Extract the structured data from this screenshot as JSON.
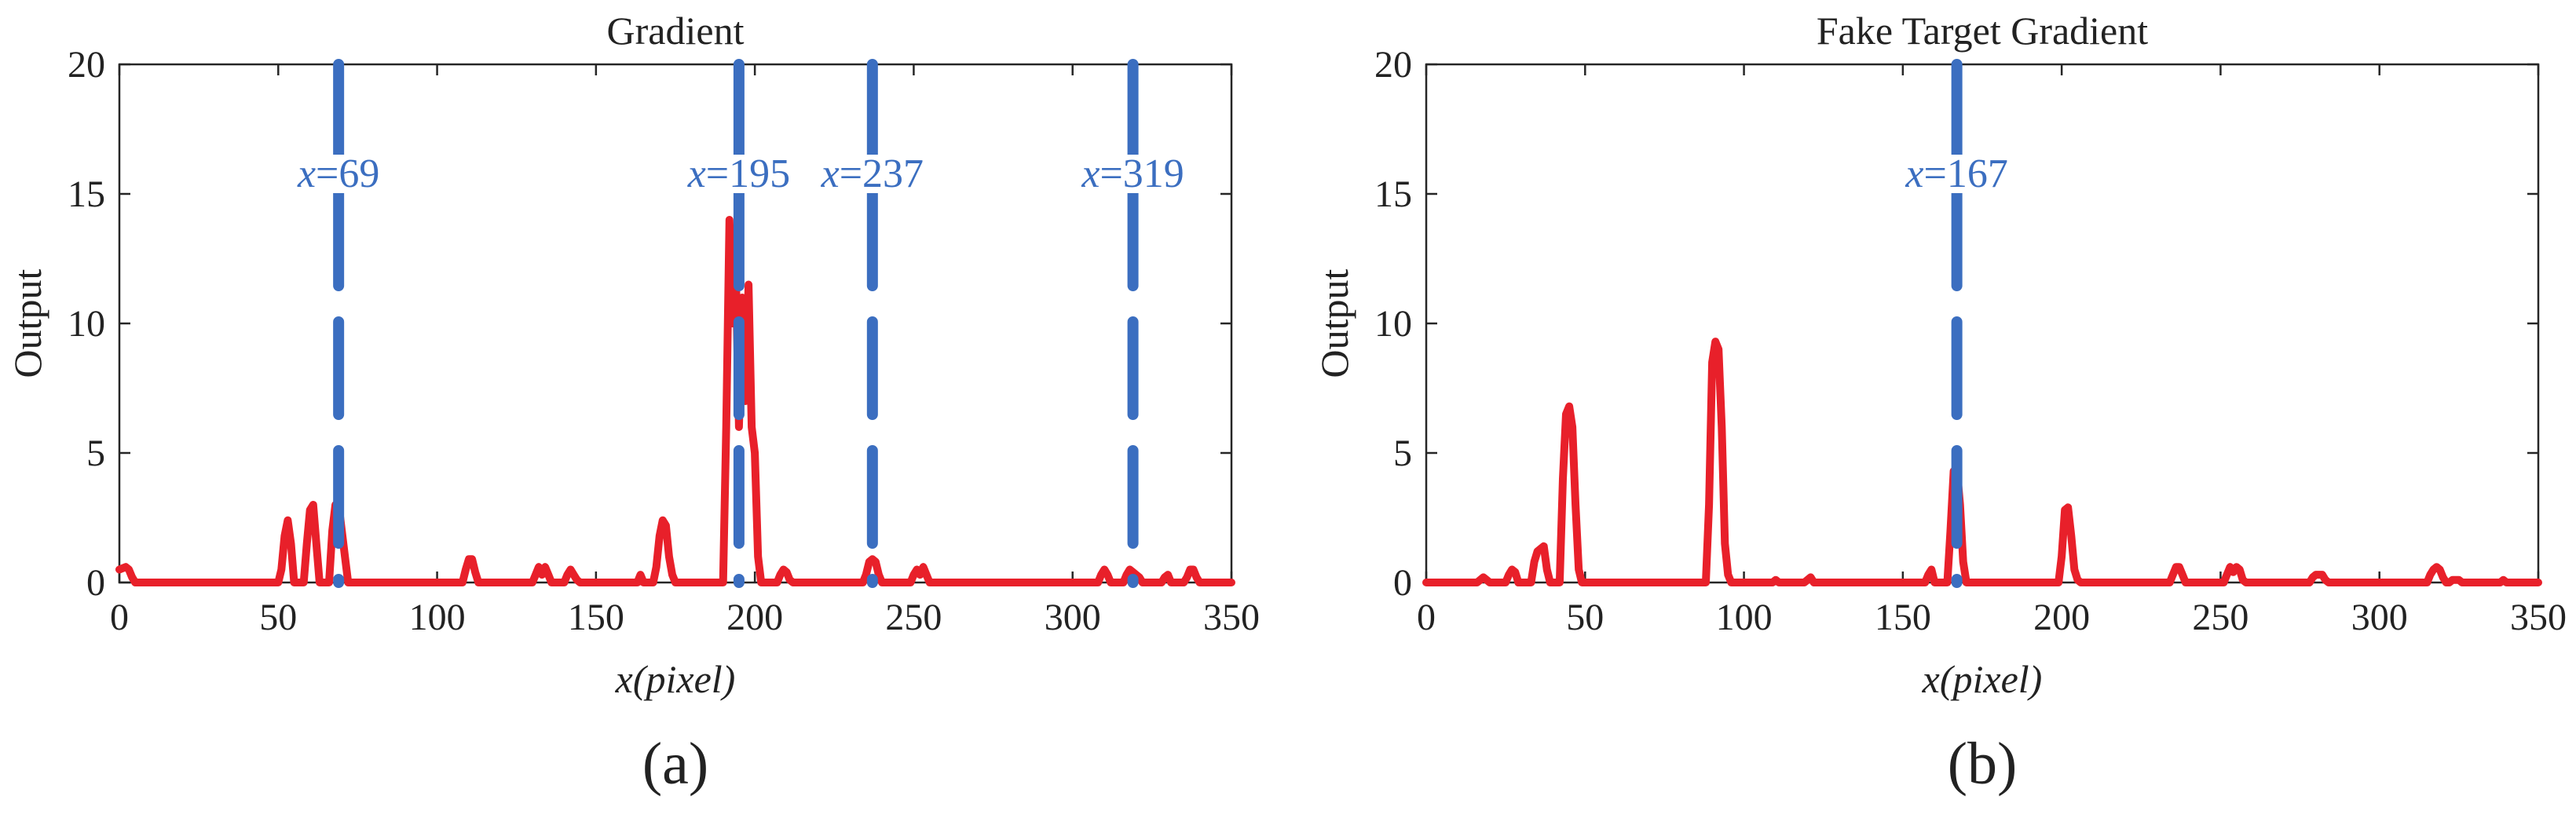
{
  "chart_data": [
    {
      "type": "line",
      "title": "Gradient",
      "panel_label": "(a)",
      "xlabel": "x(pixel)",
      "ylabel": "Output",
      "xlim": [
        0,
        350
      ],
      "ylim": [
        0,
        20
      ],
      "xticks": [
        "0",
        "50",
        "100",
        "150",
        "200",
        "250",
        "300",
        "350"
      ],
      "yticks": [
        "0",
        "5",
        "10",
        "15",
        "20"
      ],
      "grid": false,
      "series": [
        {
          "color": "#E8202A",
          "style": "solid",
          "x": [
            0,
            2,
            3,
            4,
            5,
            50,
            51,
            52,
            53,
            54,
            55,
            58,
            59,
            60,
            61,
            62,
            63,
            66,
            67,
            68,
            69,
            70,
            71,
            72,
            108,
            109,
            110,
            111,
            112,
            113,
            130,
            131,
            132,
            133,
            134,
            135,
            136,
            137,
            140,
            141,
            142,
            143,
            144,
            145,
            163,
            164,
            165,
            168,
            169,
            170,
            171,
            172,
            173,
            174,
            175,
            190,
            191,
            192,
            193,
            194,
            195,
            196,
            197,
            198,
            199,
            200,
            201,
            202,
            207,
            208,
            209,
            210,
            211,
            212,
            234,
            235,
            236,
            237,
            238,
            239,
            240,
            249,
            250,
            251,
            252,
            253,
            254,
            255,
            308,
            309,
            310,
            311,
            312,
            316,
            317,
            318,
            319,
            320,
            321,
            322,
            328,
            329,
            330,
            331,
            335,
            336,
            337,
            338,
            339,
            340,
            350
          ],
          "y": [
            0.5,
            0.6,
            0.5,
            0.2,
            0,
            0,
            0.5,
            1.8,
            2.4,
            1.5,
            0,
            0,
            1.5,
            2.8,
            3.0,
            1.5,
            0,
            0,
            2.0,
            3.0,
            3.0,
            2.0,
            1.0,
            0,
            0,
            0.5,
            0.9,
            0.9,
            0.4,
            0,
            0,
            0.3,
            0.6,
            0.3,
            0.6,
            0.3,
            0,
            0,
            0,
            0.3,
            0.5,
            0.3,
            0.1,
            0,
            0,
            0.3,
            0,
            0,
            0.6,
            1.8,
            2.4,
            2.2,
            1.0,
            0.3,
            0,
            0,
            6.0,
            14.0,
            10.0,
            12.0,
            6.0,
            11.0,
            7.0,
            11.5,
            6.0,
            5.0,
            1.0,
            0,
            0,
            0.3,
            0.5,
            0.4,
            0.1,
            0,
            0,
            0.3,
            0.8,
            0.9,
            0.8,
            0.3,
            0,
            0,
            0.3,
            0.5,
            0.3,
            0.6,
            0.3,
            0,
            0,
            0.3,
            0.5,
            0.3,
            0,
            0,
            0.3,
            0.5,
            0.4,
            0.3,
            0.2,
            0,
            0,
            0.2,
            0.3,
            0,
            0,
            0.2,
            0.5,
            0.5,
            0.2,
            0,
            0
          ]
        }
      ],
      "annotations": [
        {
          "x": 69,
          "label_var": "x",
          "label_rest": "=69",
          "color": "#3B6EC0",
          "style": "dashed"
        },
        {
          "x": 195,
          "label_var": "x",
          "label_rest": "=195",
          "color": "#3B6EC0",
          "style": "dashed"
        },
        {
          "x": 237,
          "label_var": "x",
          "label_rest": "=237",
          "color": "#3B6EC0",
          "style": "dashed"
        },
        {
          "x": 319,
          "label_var": "x",
          "label_rest": "=319",
          "color": "#3B6EC0",
          "style": "dashed"
        }
      ]
    },
    {
      "type": "line",
      "title": "Fake Target Gradient",
      "panel_label": "(b)",
      "xlabel": "x(pixel)",
      "ylabel": "Output",
      "xlim": [
        0,
        350
      ],
      "ylim": [
        0,
        20
      ],
      "xticks": [
        "0",
        "50",
        "100",
        "150",
        "200",
        "250",
        "300",
        "350"
      ],
      "yticks": [
        "0",
        "5",
        "10",
        "15",
        "20"
      ],
      "grid": false,
      "series": [
        {
          "color": "#E8202A",
          "style": "solid",
          "x": [
            0,
            16,
            17,
            18,
            19,
            20,
            25,
            26,
            27,
            28,
            29,
            33,
            34,
            35,
            36,
            37,
            38,
            39,
            42,
            43,
            44,
            45,
            46,
            47,
            48,
            49,
            88,
            89,
            90,
            91,
            92,
            93,
            94,
            95,
            96,
            109,
            110,
            111,
            119,
            120,
            121,
            122,
            157,
            158,
            159,
            160,
            164,
            165,
            166,
            167,
            168,
            169,
            170,
            199,
            200,
            201,
            202,
            203,
            204,
            205,
            206,
            234,
            235,
            236,
            237,
            238,
            239,
            251,
            252,
            253,
            254,
            255,
            256,
            257,
            258,
            278,
            279,
            280,
            281,
            282,
            283,
            284,
            315,
            316,
            317,
            318,
            319,
            320,
            321,
            322,
            323,
            324,
            325,
            326,
            338,
            339,
            340,
            350
          ],
          "y": [
            0,
            0,
            0.1,
            0.2,
            0.1,
            0,
            0,
            0.3,
            0.5,
            0.4,
            0,
            0,
            0.8,
            1.2,
            1.3,
            1.4,
            0.5,
            0,
            0,
            4.0,
            6.5,
            6.8,
            6.0,
            3.0,
            0.5,
            0,
            0,
            3.0,
            8.5,
            9.3,
            9.0,
            6.0,
            1.5,
            0.3,
            0,
            0,
            0.1,
            0,
            0,
            0.1,
            0.2,
            0,
            0,
            0.3,
            0.5,
            0,
            0,
            2.0,
            4.3,
            4.4,
            3.0,
            0.8,
            0,
            0,
            1.0,
            2.8,
            2.9,
            1.8,
            0.5,
            0.1,
            0,
            0,
            0.3,
            0.6,
            0.6,
            0.3,
            0,
            0,
            0.3,
            0.6,
            0.4,
            0.6,
            0.5,
            0.1,
            0,
            0,
            0.2,
            0.3,
            0.3,
            0.3,
            0.1,
            0,
            0,
            0.3,
            0.5,
            0.6,
            0.5,
            0.2,
            0,
            0,
            0.1,
            0.1,
            0.1,
            0,
            0,
            0.1,
            0,
            0
          ]
        }
      ],
      "annotations": [
        {
          "x": 167,
          "label_var": "x",
          "label_rest": "=167",
          "color": "#3B6EC0",
          "style": "dashed"
        }
      ]
    }
  ]
}
